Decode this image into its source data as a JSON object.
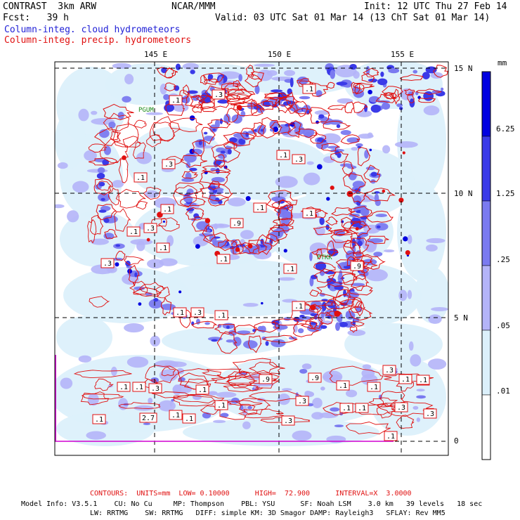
{
  "header": {
    "model": "CONTRAST  3km ARW",
    "org": "NCAR/MMM",
    "init": "Init: 12 UTC Thu 27 Feb 14",
    "fcst": "Fcst:   39 h",
    "valid": "Valid: 03 UTC Sat 01 Mar 14 (13 ChT Sat 01 Mar 14)",
    "field1": "Column-integ. cloud hydrometeors",
    "field2": "Column-integ. precip. hydrometeors"
  },
  "axes": {
    "lon_labels": [
      "145 E",
      "150 E",
      "155 E"
    ],
    "lat_labels": [
      "15 N",
      "10 N",
      "5 N",
      "0"
    ]
  },
  "colorbar": {
    "unit": "mm",
    "levels": [
      "6.25",
      "1.25",
      ".25",
      ".05",
      ".01"
    ],
    "colors": [
      "#0000e0",
      "#3a3ae8",
      "#7a7af0",
      "#b4b4f8",
      "#dcf0fb",
      "#ffffff"
    ]
  },
  "stations": [
    "PGUM",
    "PTKK"
  ],
  "contour_labels": [
    ".1",
    ".3",
    ".1",
    ".3",
    ".1",
    ".1",
    ".3",
    ".1",
    ".1",
    ".9",
    ".1",
    ".1",
    ".3",
    ".1",
    ".1",
    ".1",
    ".3",
    ".9",
    ".1",
    ".3",
    ".1",
    ".1",
    ".9",
    ".1",
    ".1",
    ".3",
    ".1",
    ".9",
    ".1",
    ".1",
    ".3",
    ".1",
    ".1",
    ".1",
    ".1",
    ".3",
    ".1",
    ".1",
    ".3",
    ".1",
    "2.7",
    ".1",
    ".3",
    ".1",
    ".3",
    ".1"
  ],
  "footer": {
    "contours": "CONTOURS:  UNITS=mm  LOW= 0.10000      HIGH=  72.900      INTERVAL=X  3.0000",
    "info1": "Model Info: V3.5.1    CU: No Cu     MP: Thompson    PBL: YSU      SF: Noah LSM    3.0 km   39 levels   18 sec",
    "info2": "LW: RRTMG    SW: RRTMG   DIFF: simple KM: 3D Smagor DAMP: Rayleigh3   SFLAY: Rev MM5"
  }
}
